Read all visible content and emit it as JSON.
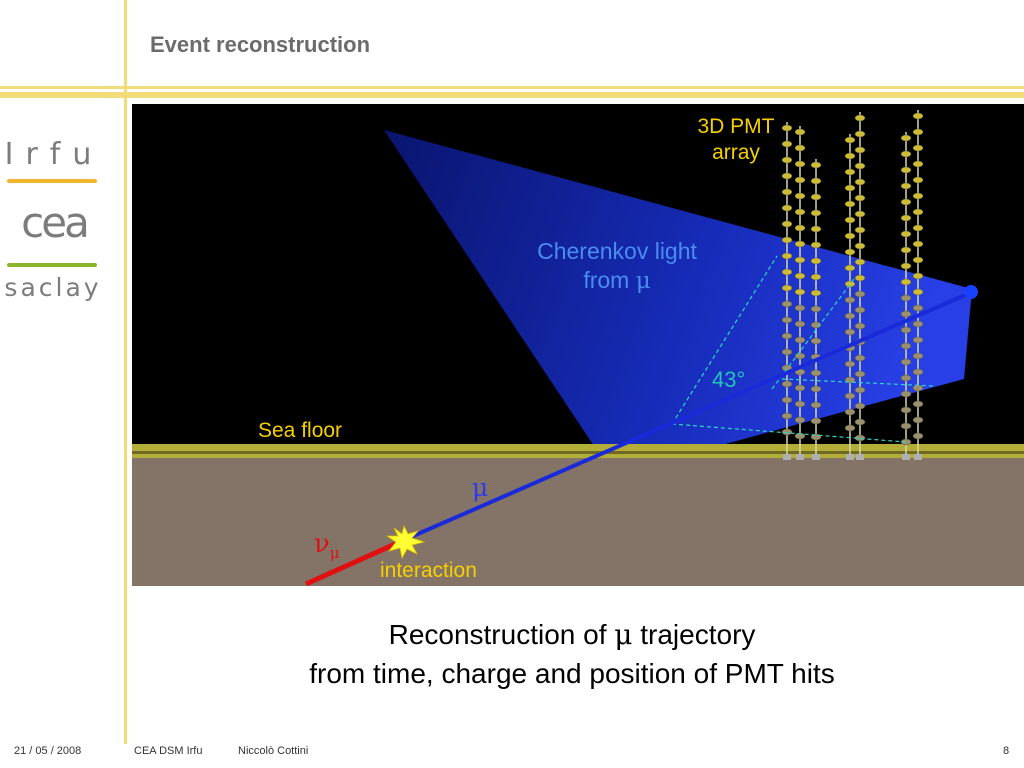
{
  "slide": {
    "title": "Event reconstruction"
  },
  "logos": {
    "irfu": "Irfu",
    "cea": "cea",
    "saclay": "saclay"
  },
  "diagram": {
    "labels": {
      "pmt_array": [
        "3D PMT",
        "array"
      ],
      "cherenkov_text": "Cherenkov light",
      "cherenkov_from": "from",
      "mu_symbol": "μ",
      "angle": "43°",
      "sea_floor": "Sea floor",
      "nu_symbol": "ν",
      "nu_sub": "μ",
      "interaction": "interaction"
    },
    "colors": {
      "label_yellow": "#f5d000",
      "label_blue": "#4a8cf0",
      "angle_teal": "#23c4b8",
      "muon_track": "#1a2ad8",
      "neutrino_track": "#e01010",
      "sea_floor": "#847468"
    }
  },
  "caption": {
    "line1_before": "Reconstruction of",
    "line1_symbol": "μ",
    "line1_after": "trajectory",
    "line2": "from time, charge and position of PMT hits"
  },
  "footer": {
    "date": "21 / 05 / 2008",
    "org": "CEA DSM Irfu",
    "author": "Niccolò Cottini",
    "page": "8"
  }
}
